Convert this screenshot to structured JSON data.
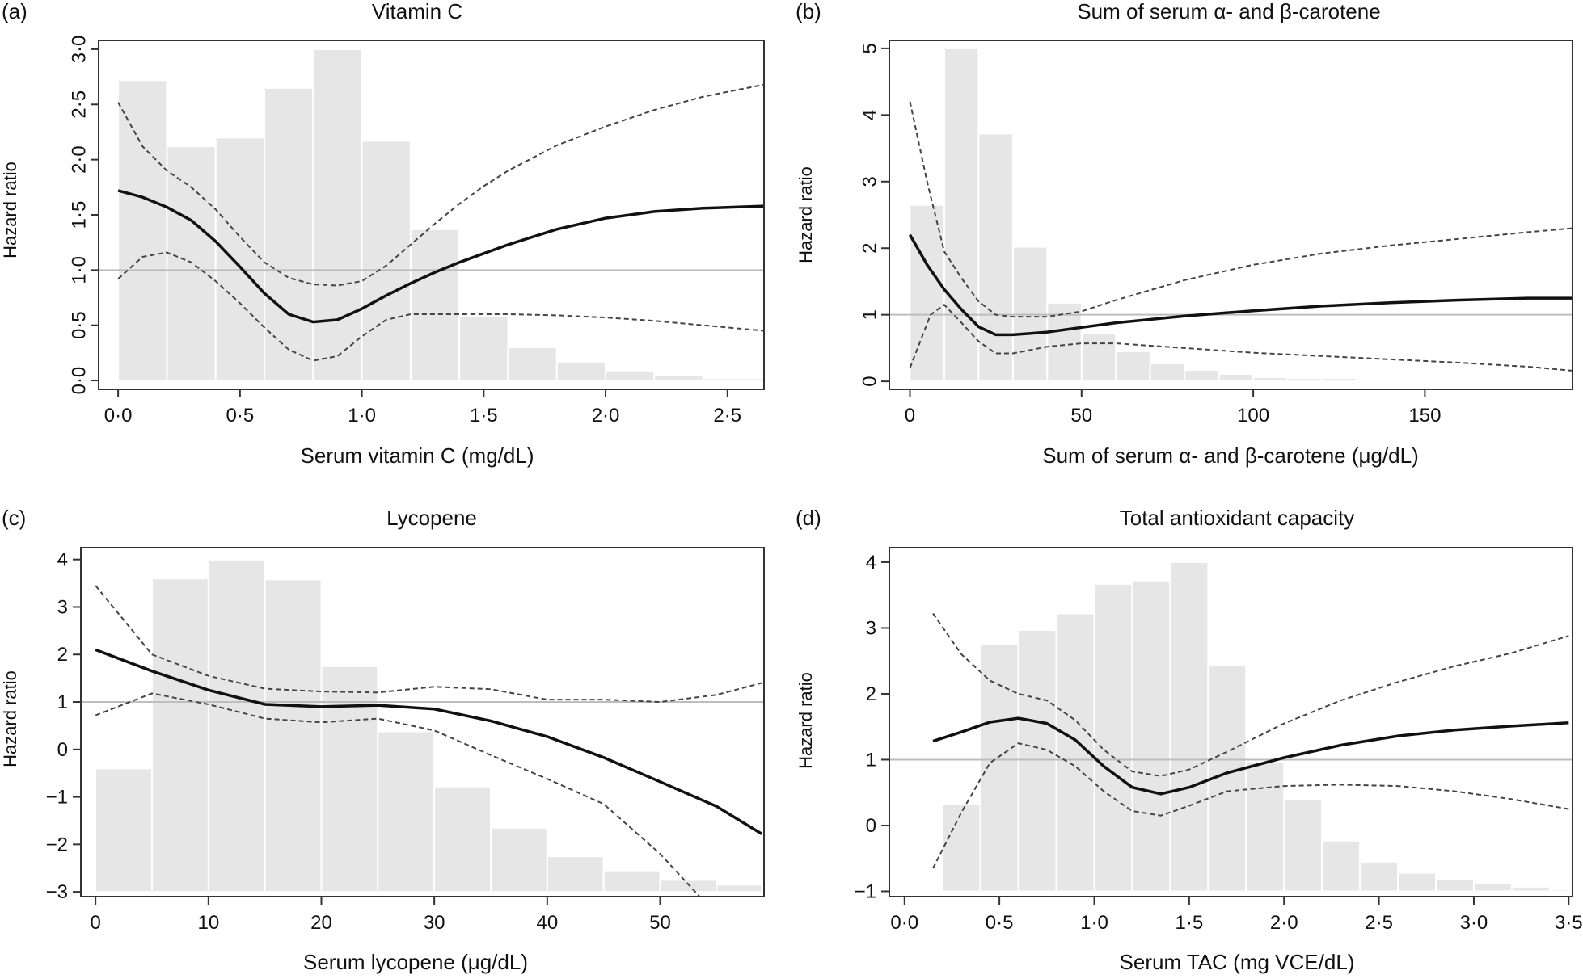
{
  "figure": {
    "panels": [
      {
        "letter": "(a)",
        "title": "Vitamin C",
        "xlabel": "Serum vitamin C (mg/dL)",
        "ylabel": "Hazard ratio"
      },
      {
        "letter": "(b)",
        "title": "Sum of serum α- and β-carotene",
        "xlabel": "Sum of serum α- and β-carotene (μg/dL)",
        "ylabel": "Hazard ratio"
      },
      {
        "letter": "(c)",
        "title": "Lycopene",
        "xlabel": "Serum lycopene (μg/dL)",
        "ylabel": "Hazard ratio"
      },
      {
        "letter": "(d)",
        "title": "Total antioxidant capacity",
        "xlabel": "Serum TAC (mg VCE/dL)",
        "ylabel": "Hazard ratio"
      }
    ]
  },
  "chart_data": [
    {
      "type": "line",
      "panel": "(a)",
      "title": "Vitamin C",
      "xlabel": "Serum vitamin C (mg/dL)",
      "ylabel": "Hazard ratio",
      "xlim": [
        -0.08,
        2.65
      ],
      "ylim": [
        -0.08,
        3.08
      ],
      "xticks": [
        0,
        0.5,
        1.0,
        1.5,
        2.0,
        2.5
      ],
      "xtick_labels": [
        "0·0",
        "0·5",
        "1·0",
        "1·5",
        "2·0",
        "2·5"
      ],
      "yticks": [
        0,
        0.5,
        1.0,
        1.5,
        2.0,
        2.5,
        3.0
      ],
      "ytick_labels": [
        "0·0",
        "0·5",
        "1·0",
        "1·5",
        "2·0",
        "2·5",
        "3·0"
      ],
      "ytick_rotated": true,
      "reference_line": 1.0,
      "histogram": {
        "bin_edges": [
          0,
          0.2,
          0.4,
          0.6,
          0.8,
          1.0,
          1.2,
          1.4,
          1.6,
          1.8,
          2.0,
          2.2,
          2.4,
          2.65
        ],
        "heights": [
          2.72,
          2.12,
          2.2,
          2.65,
          3.0,
          2.17,
          1.37,
          0.58,
          0.3,
          0.17,
          0.09,
          0.05,
          0.02
        ],
        "baseline": 0
      },
      "series": [
        {
          "role": "estimate",
          "style": "solid",
          "x": [
            0,
            0.1,
            0.2,
            0.3,
            0.4,
            0.5,
            0.6,
            0.7,
            0.8,
            0.9,
            1.0,
            1.1,
            1.2,
            1.3,
            1.4,
            1.5,
            1.6,
            1.8,
            2.0,
            2.2,
            2.4,
            2.65
          ],
          "y": [
            1.72,
            1.66,
            1.57,
            1.45,
            1.26,
            1.03,
            0.79,
            0.6,
            0.53,
            0.55,
            0.65,
            0.77,
            0.88,
            0.98,
            1.07,
            1.15,
            1.23,
            1.37,
            1.47,
            1.53,
            1.56,
            1.58
          ]
        },
        {
          "role": "upper-ci",
          "style": "dashed",
          "x": [
            0,
            0.1,
            0.2,
            0.3,
            0.4,
            0.5,
            0.6,
            0.7,
            0.8,
            0.9,
            1.0,
            1.1,
            1.2,
            1.3,
            1.4,
            1.5,
            1.6,
            1.8,
            2.0,
            2.2,
            2.4,
            2.65
          ],
          "y": [
            2.52,
            2.12,
            1.9,
            1.75,
            1.55,
            1.3,
            1.07,
            0.93,
            0.87,
            0.86,
            0.9,
            1.04,
            1.23,
            1.42,
            1.6,
            1.76,
            1.9,
            2.13,
            2.3,
            2.45,
            2.57,
            2.68
          ]
        },
        {
          "role": "lower-ci",
          "style": "dashed",
          "x": [
            0,
            0.1,
            0.2,
            0.3,
            0.4,
            0.5,
            0.6,
            0.7,
            0.8,
            0.9,
            1.0,
            1.1,
            1.2,
            1.3,
            1.4,
            1.5,
            1.6,
            1.8,
            2.0,
            2.2,
            2.4,
            2.65
          ],
          "y": [
            0.92,
            1.12,
            1.16,
            1.07,
            0.9,
            0.7,
            0.48,
            0.28,
            0.18,
            0.22,
            0.4,
            0.55,
            0.6,
            0.6,
            0.6,
            0.6,
            0.6,
            0.59,
            0.57,
            0.54,
            0.5,
            0.45
          ]
        }
      ]
    },
    {
      "type": "line",
      "panel": "(b)",
      "title": "Sum of serum α- and β-carotene",
      "xlabel": "Sum of serum α- and β-carotene (μg/dL)",
      "ylabel": "Hazard ratio",
      "xlim": [
        -6,
        193
      ],
      "ylim": [
        -0.12,
        5.12
      ],
      "xticks": [
        0,
        50,
        100,
        150
      ],
      "xtick_labels": [
        "0",
        "50",
        "100",
        "150"
      ],
      "yticks": [
        0,
        1,
        2,
        3,
        4,
        5
      ],
      "ytick_labels": [
        "0",
        "1",
        "2",
        "3",
        "4",
        "5"
      ],
      "ytick_rotated": true,
      "reference_line": 1.0,
      "histogram": {
        "bin_edges": [
          0,
          10,
          20,
          30,
          40,
          50,
          60,
          70,
          80,
          90,
          100,
          110,
          120,
          130,
          140,
          150,
          160,
          170,
          180
        ],
        "heights": [
          2.65,
          5.0,
          3.72,
          2.02,
          1.18,
          0.72,
          0.45,
          0.27,
          0.17,
          0.11,
          0.06,
          0.05,
          0.05,
          0.0,
          0.02,
          0.0,
          0.02,
          0.0
        ],
        "baseline": 0
      },
      "series": [
        {
          "role": "estimate",
          "style": "solid",
          "x": [
            0,
            5,
            10,
            15,
            20,
            25,
            30,
            40,
            50,
            60,
            80,
            100,
            120,
            140,
            160,
            180,
            193
          ],
          "y": [
            2.2,
            1.75,
            1.38,
            1.08,
            0.82,
            0.7,
            0.7,
            0.74,
            0.81,
            0.88,
            0.98,
            1.06,
            1.13,
            1.18,
            1.22,
            1.25,
            1.25
          ]
        },
        {
          "role": "upper-ci",
          "style": "dashed",
          "x": [
            0,
            5,
            10,
            15,
            20,
            25,
            30,
            40,
            50,
            60,
            80,
            100,
            120,
            140,
            160,
            180,
            193
          ],
          "y": [
            4.2,
            3.0,
            1.95,
            1.55,
            1.2,
            1.0,
            0.97,
            0.97,
            1.05,
            1.22,
            1.52,
            1.75,
            1.92,
            2.04,
            2.14,
            2.24,
            2.3
          ]
        },
        {
          "role": "lower-ci",
          "style": "dashed",
          "x": [
            0,
            3,
            6,
            10,
            15,
            20,
            25,
            30,
            40,
            50,
            60,
            80,
            100,
            120,
            140,
            160,
            180,
            193
          ],
          "y": [
            0.2,
            0.6,
            1.0,
            1.15,
            0.88,
            0.6,
            0.42,
            0.42,
            0.52,
            0.57,
            0.57,
            0.5,
            0.43,
            0.38,
            0.33,
            0.28,
            0.22,
            0.16
          ]
        }
      ]
    },
    {
      "type": "line",
      "panel": "(c)",
      "title": "Lycopene",
      "xlabel": "Serum lycopene (μg/dL)",
      "ylabel": "Hazard ratio",
      "xlim": [
        -1.3,
        59.2
      ],
      "ylim": [
        -3.1,
        4.25
      ],
      "xticks": [
        0,
        10,
        20,
        30,
        40,
        50
      ],
      "xtick_labels": [
        "0",
        "10",
        "20",
        "30",
        "40",
        "50"
      ],
      "yticks": [
        -3,
        -2,
        -1,
        0,
        1,
        2,
        3,
        4
      ],
      "ytick_labels": [
        "−3",
        "−2",
        "−1",
        "0",
        "1",
        "2",
        "3",
        "4"
      ],
      "ytick_rotated": false,
      "reference_line": 1.0,
      "histogram": {
        "bin_edges": [
          0,
          5,
          10,
          15,
          20,
          25,
          30,
          35,
          40,
          45,
          50,
          55,
          59
        ],
        "heights": [
          -0.4,
          3.6,
          4.0,
          3.58,
          1.75,
          0.38,
          -0.78,
          -1.65,
          -2.25,
          -2.55,
          -2.75,
          -2.85
        ],
        "baseline": -3
      },
      "series": [
        {
          "role": "estimate",
          "style": "solid",
          "x": [
            0,
            5,
            10,
            15,
            20,
            25,
            30,
            35,
            40,
            45,
            50,
            55,
            59
          ],
          "y": [
            2.1,
            1.65,
            1.25,
            0.95,
            0.9,
            0.93,
            0.85,
            0.6,
            0.27,
            -0.17,
            -0.68,
            -1.2,
            -1.78
          ]
        },
        {
          "role": "upper-ci",
          "style": "dashed",
          "x": [
            0,
            5,
            10,
            15,
            20,
            25,
            30,
            35,
            40,
            45,
            50,
            55,
            59
          ],
          "y": [
            3.45,
            2.0,
            1.55,
            1.28,
            1.22,
            1.2,
            1.32,
            1.27,
            1.05,
            1.05,
            1.0,
            1.15,
            1.4
          ]
        },
        {
          "role": "lower-ci",
          "style": "dashed",
          "x": [
            0,
            5,
            10,
            15,
            20,
            25,
            30,
            35,
            40,
            45,
            50,
            53.5
          ],
          "y": [
            0.72,
            1.18,
            0.95,
            0.65,
            0.57,
            0.65,
            0.4,
            -0.12,
            -0.62,
            -1.15,
            -2.2,
            -3.1
          ]
        }
      ]
    },
    {
      "type": "line",
      "panel": "(d)",
      "title": "Total antioxidant capacity",
      "xlabel": "Serum TAC (mg VCE/dL)",
      "ylabel": "Hazard ratio",
      "xlim": [
        -0.08,
        3.52
      ],
      "ylim": [
        -1.08,
        4.22
      ],
      "xticks": [
        0,
        0.5,
        1.0,
        1.5,
        2.0,
        2.5,
        3.0,
        3.5
      ],
      "xtick_labels": [
        "0·0",
        "0·5",
        "1·0",
        "1·5",
        "2·0",
        "2·5",
        "3·0",
        "3·5"
      ],
      "yticks": [
        -1,
        0,
        1,
        2,
        3,
        4
      ],
      "ytick_labels": [
        "−1",
        "0",
        "1",
        "2",
        "3",
        "4"
      ],
      "ytick_rotated": false,
      "reference_line": 1.0,
      "histogram": {
        "bin_edges": [
          0.2,
          0.4,
          0.6,
          0.8,
          1.0,
          1.2,
          1.4,
          1.6,
          1.8,
          2.0,
          2.2,
          2.4,
          2.6,
          2.8,
          3.0,
          3.2,
          3.4,
          3.5
        ],
        "heights": [
          0.32,
          2.75,
          2.97,
          3.22,
          3.67,
          3.72,
          4.0,
          2.43,
          0.97,
          0.4,
          -0.23,
          -0.55,
          -0.72,
          -0.82,
          -0.87,
          -0.93,
          -0.97
        ],
        "baseline": -1
      },
      "series": [
        {
          "role": "estimate",
          "style": "solid",
          "x": [
            0.15,
            0.3,
            0.45,
            0.6,
            0.75,
            0.9,
            1.05,
            1.2,
            1.35,
            1.5,
            1.7,
            2.0,
            2.3,
            2.6,
            2.9,
            3.2,
            3.5
          ],
          "y": [
            1.28,
            1.42,
            1.57,
            1.63,
            1.55,
            1.3,
            0.9,
            0.58,
            0.48,
            0.58,
            0.8,
            1.03,
            1.22,
            1.36,
            1.45,
            1.51,
            1.56
          ]
        },
        {
          "role": "upper-ci",
          "style": "dashed",
          "x": [
            0.15,
            0.3,
            0.45,
            0.6,
            0.75,
            0.9,
            1.05,
            1.2,
            1.35,
            1.5,
            1.7,
            2.0,
            2.3,
            2.6,
            2.9,
            3.2,
            3.5
          ],
          "y": [
            3.22,
            2.6,
            2.2,
            2.0,
            1.9,
            1.6,
            1.15,
            0.82,
            0.75,
            0.85,
            1.12,
            1.55,
            1.9,
            2.18,
            2.42,
            2.62,
            2.88
          ]
        },
        {
          "role": "lower-ci",
          "style": "dashed",
          "x": [
            0.15,
            0.3,
            0.45,
            0.6,
            0.75,
            0.9,
            1.05,
            1.2,
            1.35,
            1.5,
            1.7,
            2.0,
            2.3,
            2.6,
            2.9,
            3.2,
            3.5
          ],
          "y": [
            -0.65,
            0.2,
            0.95,
            1.25,
            1.15,
            0.9,
            0.52,
            0.22,
            0.15,
            0.3,
            0.52,
            0.6,
            0.62,
            0.6,
            0.52,
            0.4,
            0.25
          ]
        }
      ]
    }
  ]
}
